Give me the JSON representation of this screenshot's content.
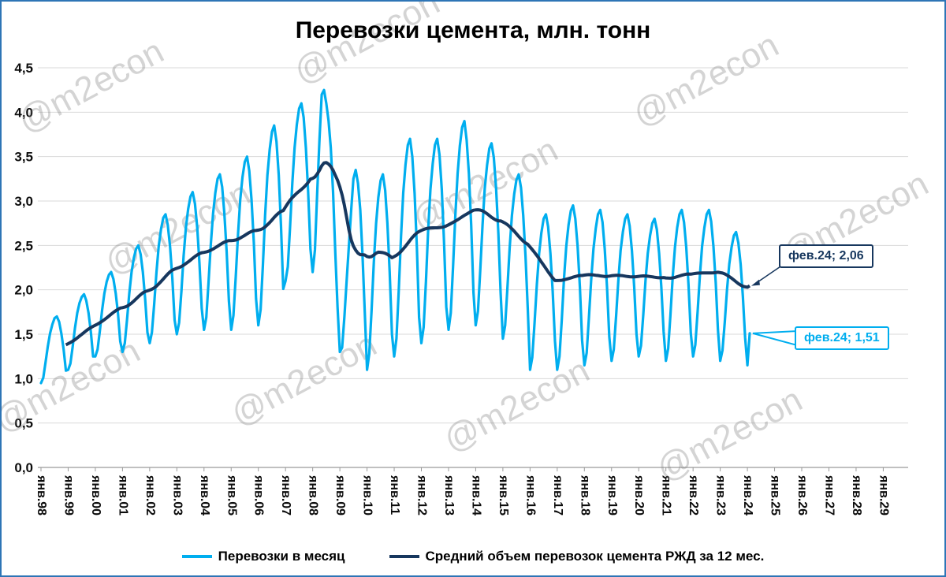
{
  "watermark": "@m2econ",
  "page_border_color": "#2E75B6",
  "chart_data": {
    "type": "line",
    "title": "Перевозки цемента, млн. тонн",
    "xlabel": "",
    "ylabel": "",
    "ylim": [
      0,
      4.5
    ],
    "y_tick_step": 0.5,
    "grid": "horizontal",
    "legend_position": "bottom",
    "y_tick_labels": [
      "0,0",
      "0,5",
      "1,0",
      "1,5",
      "2,0",
      "2,5",
      "3,0",
      "3,5",
      "4,0",
      "4,5"
    ],
    "x_tick_labels": [
      "янв.98",
      "янв.99",
      "янв.00",
      "янв.01",
      "янв.02",
      "янв.03",
      "янв.04",
      "янв.05",
      "янв.06",
      "янв.07",
      "янв.08",
      "янв.09",
      "янв.10",
      "янв.11",
      "янв.12",
      "янв.13",
      "янв.14",
      "янв.15",
      "янв.16",
      "янв.17",
      "янв.18",
      "янв.19",
      "янв.20",
      "янв.21",
      "янв.22",
      "янв.23",
      "янв.24",
      "янв.25",
      "янв.26",
      "янв.27",
      "янв.28",
      "янв.29"
    ],
    "x_axis_months_total": 384,
    "series": [
      {
        "name": "Перевозки в месяц",
        "color": "#00AEEF",
        "start": "янв.98",
        "end": "фев.24",
        "values": [
          0.95,
          1.01,
          1.18,
          1.36,
          1.51,
          1.61,
          1.68,
          1.7,
          1.64,
          1.51,
          1.33,
          1.09,
          1.1,
          1.17,
          1.36,
          1.57,
          1.74,
          1.85,
          1.92,
          1.95,
          1.88,
          1.74,
          1.53,
          1.25,
          1.25,
          1.33,
          1.54,
          1.77,
          1.96,
          2.09,
          2.17,
          2.2,
          2.12,
          1.96,
          1.73,
          1.42,
          1.3,
          1.4,
          1.66,
          1.96,
          2.2,
          2.36,
          2.46,
          2.5,
          2.4,
          2.2,
          1.9,
          1.52,
          1.4,
          1.52,
          1.84,
          2.2,
          2.49,
          2.68,
          2.81,
          2.85,
          2.73,
          2.49,
          2.13,
          1.66,
          1.5,
          1.63,
          1.98,
          2.38,
          2.7,
          2.91,
          3.05,
          3.1,
          2.97,
          2.7,
          2.3,
          1.79,
          1.55,
          1.69,
          2.08,
          2.51,
          2.86,
          3.09,
          3.25,
          3.3,
          3.16,
          2.86,
          2.43,
          1.87,
          1.55,
          1.71,
          2.14,
          2.62,
          3.01,
          3.27,
          3.44,
          3.5,
          3.34,
          3.01,
          2.53,
          1.9,
          1.6,
          1.78,
          2.28,
          2.84,
          3.29,
          3.58,
          3.78,
          3.85,
          3.67,
          3.29,
          2.73,
          2.01,
          2.1,
          2.26,
          2.7,
          3.2,
          3.6,
          3.86,
          4.04,
          4.1,
          3.94,
          3.6,
          3.1,
          2.46,
          2.2,
          2.45,
          3.1,
          3.7,
          4.2,
          4.25,
          4.1,
          3.9,
          3.6,
          3.1,
          2.4,
          1.8,
          1.3,
          1.35,
          1.7,
          2.1,
          2.5,
          2.9,
          3.25,
          3.35,
          3.2,
          2.9,
          2.4,
          1.75,
          1.1,
          1.28,
          1.76,
          2.31,
          2.75,
          3.04,
          3.23,
          3.3,
          3.12,
          2.75,
          2.2,
          1.5,
          1.25,
          1.45,
          1.99,
          2.6,
          3.09,
          3.41,
          3.63,
          3.7,
          3.5,
          3.09,
          2.48,
          1.69,
          1.4,
          1.58,
          2.09,
          2.67,
          3.13,
          3.42,
          3.63,
          3.7,
          3.52,
          3.13,
          2.55,
          1.81,
          1.55,
          1.74,
          2.26,
          2.84,
          3.31,
          3.62,
          3.83,
          3.9,
          3.69,
          3.31,
          2.73,
          1.97,
          1.6,
          1.76,
          2.22,
          2.73,
          3.14,
          3.4,
          3.59,
          3.65,
          3.49,
          3.14,
          2.63,
          1.97,
          1.45,
          1.6,
          2.01,
          2.47,
          2.84,
          3.08,
          3.24,
          3.3,
          3.15,
          2.84,
          2.38,
          1.78,
          1.1,
          1.24,
          1.63,
          2.06,
          2.41,
          2.64,
          2.8,
          2.85,
          2.71,
          2.41,
          1.98,
          1.42,
          1.1,
          1.25,
          1.66,
          2.12,
          2.49,
          2.73,
          2.89,
          2.95,
          2.8,
          2.49,
          2.03,
          1.43,
          1.15,
          1.29,
          1.68,
          2.11,
          2.46,
          2.69,
          2.85,
          2.9,
          2.76,
          2.46,
          2.03,
          1.47,
          1.2,
          1.33,
          1.7,
          2.11,
          2.44,
          2.65,
          2.8,
          2.85,
          2.72,
          2.44,
          2.03,
          1.5,
          1.25,
          1.37,
          1.72,
          2.1,
          2.41,
          2.61,
          2.75,
          2.8,
          2.68,
          2.41,
          2.03,
          1.53,
          1.2,
          1.34,
          1.71,
          2.14,
          2.48,
          2.7,
          2.85,
          2.9,
          2.76,
          2.48,
          2.05,
          1.51,
          1.25,
          1.38,
          1.75,
          2.16,
          2.49,
          2.7,
          2.85,
          2.9,
          2.77,
          2.49,
          2.08,
          1.55,
          1.2,
          1.32,
          1.64,
          2.0,
          2.29,
          2.48,
          2.61,
          2.65,
          2.53,
          2.29,
          1.93,
          1.46,
          1.15,
          1.51
        ],
        "last_point_label": "фев.24; 1,51",
        "last_value": 1.51
      },
      {
        "name": "Средний объем перевозок цемента РЖД за 12 мес.",
        "color": "#17375E",
        "derived_from": "trailing 12-month mean of series 0",
        "start": "дек.98",
        "end": "фев.24",
        "last_point_label": "фев.24; 2,06",
        "last_value": 2.06
      }
    ],
    "annotations": [
      {
        "label": "фев.24; 2,06",
        "series": 1,
        "x": "фев.24",
        "y": 2.06
      },
      {
        "label": "фев.24; 1,51",
        "series": 0,
        "x": "фев.24",
        "y": 1.51
      }
    ]
  }
}
